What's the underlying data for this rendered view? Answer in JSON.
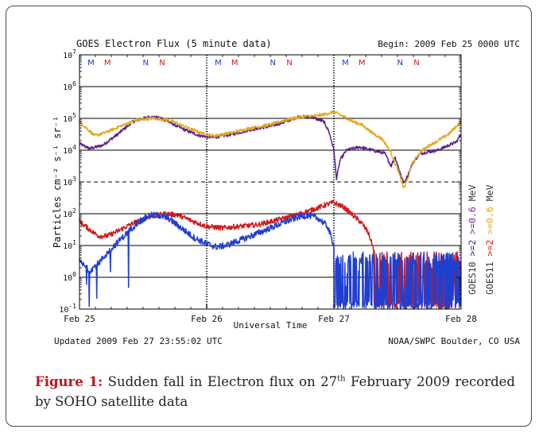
{
  "chart_data": {
    "type": "line",
    "title": "GOES Electron Flux (5 minute data)",
    "begin": "Begin: 2009 Feb 25 0000 UTC",
    "xlabel": "Universal Time",
    "ylabel": "Particles cm⁻² s⁻¹ sr⁻¹",
    "xticks": [
      "Feb 25",
      "Feb 26",
      "Feb 27",
      "Feb 28"
    ],
    "xlim_days": [
      0,
      3
    ],
    "ylim_log10": [
      -1,
      7
    ],
    "y_scale": "log",
    "yticks": [
      {
        "base": "10",
        "exp": "-1",
        "v": -1
      },
      {
        "base": "10",
        "exp": "0",
        "v": 0
      },
      {
        "base": "10",
        "exp": "1",
        "v": 1
      },
      {
        "base": "10",
        "exp": "2",
        "v": 2
      },
      {
        "base": "10",
        "exp": "3",
        "v": 3
      },
      {
        "base": "10",
        "exp": "4",
        "v": 4
      },
      {
        "base": "10",
        "exp": "5",
        "v": 5
      },
      {
        "base": "10",
        "exp": "6",
        "v": 6
      },
      {
        "base": "10",
        "exp": "7",
        "v": 7
      }
    ],
    "threshold_line_log10": 3,
    "footer_left": "Updated 2009 Feb 27 23:55:02 UTC",
    "footer_right": "NOAA/SWPC Boulder, CO USA",
    "legend": [
      {
        "lines": [
          {
            "text": "GOES10",
            "color": "#333333"
          },
          {
            "text": ">=2",
            "color": "#3a1f9e"
          },
          {
            "text": ">=0.6",
            "color": "#7e2f8e"
          },
          {
            "text": "MeV",
            "color": "#333333"
          }
        ]
      },
      {
        "lines": [
          {
            "text": "GOES11",
            "color": "#333333"
          },
          {
            "text": ">=2",
            "color": "#d11a1a"
          },
          {
            "text": ">=0.6",
            "color": "#e6a717"
          },
          {
            "text": "MeV",
            "color": "#333333"
          }
        ]
      }
    ],
    "markers": [
      {
        "t": 0.09,
        "label": "M",
        "color": "#1f3fbf"
      },
      {
        "t": 0.22,
        "label": "M",
        "color": "#c81e1e"
      },
      {
        "t": 0.52,
        "label": "N",
        "color": "#1f3fbf"
      },
      {
        "t": 0.65,
        "label": "N",
        "color": "#c81e1e"
      },
      {
        "t": 1.09,
        "label": "M",
        "color": "#1f3fbf"
      },
      {
        "t": 1.22,
        "label": "M",
        "color": "#c81e1e"
      },
      {
        "t": 1.52,
        "label": "N",
        "color": "#1f3fbf"
      },
      {
        "t": 1.65,
        "label": "N",
        "color": "#c81e1e"
      },
      {
        "t": 2.09,
        "label": "M",
        "color": "#1f3fbf"
      },
      {
        "t": 2.22,
        "label": "M",
        "color": "#c81e1e"
      },
      {
        "t": 2.52,
        "label": "N",
        "color": "#1f3fbf"
      },
      {
        "t": 2.65,
        "label": "N",
        "color": "#c81e1e"
      }
    ],
    "series": [
      {
        "id": "goes10_06",
        "color": "#5b1f8e",
        "points": [
          [
            0,
            4.2
          ],
          [
            0.08,
            4.05
          ],
          [
            0.18,
            4.15
          ],
          [
            0.3,
            4.5
          ],
          [
            0.42,
            4.9
          ],
          [
            0.55,
            5.05
          ],
          [
            0.65,
            5.0
          ],
          [
            0.72,
            4.85
          ],
          [
            0.85,
            4.6
          ],
          [
            0.95,
            4.45
          ],
          [
            1.05,
            4.4
          ],
          [
            1.2,
            4.5
          ],
          [
            1.35,
            4.65
          ],
          [
            1.5,
            4.75
          ],
          [
            1.62,
            4.9
          ],
          [
            1.72,
            5.05
          ],
          [
            1.82,
            5.05
          ],
          [
            1.92,
            4.9
          ],
          [
            1.96,
            4.6
          ],
          [
            2.0,
            4.0
          ],
          [
            2.02,
            3.1
          ],
          [
            2.05,
            3.7
          ],
          [
            2.1,
            4.0
          ],
          [
            2.2,
            4.1
          ],
          [
            2.3,
            4.0
          ],
          [
            2.4,
            3.9
          ],
          [
            2.45,
            3.5
          ],
          [
            2.48,
            3.8
          ],
          [
            2.52,
            3.3
          ],
          [
            2.55,
            2.95
          ],
          [
            2.58,
            3.2
          ],
          [
            2.62,
            3.6
          ],
          [
            2.68,
            3.9
          ],
          [
            2.75,
            3.95
          ],
          [
            2.82,
            4.0
          ],
          [
            2.9,
            4.15
          ],
          [
            2.96,
            4.25
          ],
          [
            3,
            4.5
          ]
        ],
        "noise": 0.05
      },
      {
        "id": "goes11_06",
        "color": "#e3a820",
        "points": [
          [
            0,
            4.9
          ],
          [
            0.08,
            4.6
          ],
          [
            0.12,
            4.45
          ],
          [
            0.2,
            4.55
          ],
          [
            0.32,
            4.75
          ],
          [
            0.45,
            4.95
          ],
          [
            0.58,
            5.0
          ],
          [
            0.7,
            4.95
          ],
          [
            0.82,
            4.75
          ],
          [
            0.95,
            4.55
          ],
          [
            1.05,
            4.45
          ],
          [
            1.2,
            4.55
          ],
          [
            1.35,
            4.7
          ],
          [
            1.5,
            4.8
          ],
          [
            1.62,
            4.95
          ],
          [
            1.75,
            5.05
          ],
          [
            1.9,
            5.1
          ],
          [
            2.0,
            5.2
          ],
          [
            2.08,
            5.05
          ],
          [
            2.15,
            4.9
          ],
          [
            2.22,
            4.8
          ],
          [
            2.3,
            4.55
          ],
          [
            2.38,
            4.35
          ],
          [
            2.44,
            4.0
          ],
          [
            2.5,
            3.4
          ],
          [
            2.55,
            2.8
          ],
          [
            2.58,
            3.1
          ],
          [
            2.62,
            3.6
          ],
          [
            2.68,
            3.95
          ],
          [
            2.75,
            4.15
          ],
          [
            2.82,
            4.3
          ],
          [
            2.9,
            4.5
          ],
          [
            3,
            4.9
          ]
        ],
        "noise": 0.05
      },
      {
        "id": "goes11_2",
        "color": "#d11a1a",
        "points": [
          [
            0,
            1.75
          ],
          [
            0.08,
            1.5
          ],
          [
            0.15,
            1.3
          ],
          [
            0.22,
            1.3
          ],
          [
            0.3,
            1.45
          ],
          [
            0.42,
            1.7
          ],
          [
            0.55,
            1.9
          ],
          [
            0.68,
            2.0
          ],
          [
            0.78,
            1.95
          ],
          [
            0.9,
            1.75
          ],
          [
            1.0,
            1.6
          ],
          [
            1.12,
            1.55
          ],
          [
            1.25,
            1.6
          ],
          [
            1.4,
            1.65
          ],
          [
            1.55,
            1.8
          ],
          [
            1.7,
            1.95
          ],
          [
            1.85,
            2.15
          ],
          [
            1.95,
            2.3
          ],
          [
            2.0,
            2.35
          ],
          [
            2.08,
            2.2
          ],
          [
            2.15,
            1.95
          ],
          [
            2.22,
            1.7
          ],
          [
            2.27,
            1.4
          ],
          [
            2.3,
            1.05
          ],
          [
            2.32,
            0.75
          ]
        ],
        "noise": 0.08,
        "noisy_tail": {
          "from": 2.32,
          "to": 3.0,
          "low": -1.0,
          "high": 0.8
        }
      },
      {
        "id": "goes10_2",
        "color": "#1f3fd0",
        "points": [
          [
            0,
            0.5
          ],
          [
            0.08,
            0.2
          ],
          [
            0.15,
            0.45
          ],
          [
            0.25,
            0.9
          ],
          [
            0.35,
            1.3
          ],
          [
            0.45,
            1.7
          ],
          [
            0.55,
            1.95
          ],
          [
            0.62,
            1.95
          ],
          [
            0.7,
            1.85
          ],
          [
            0.8,
            1.55
          ],
          [
            0.9,
            1.25
          ],
          [
            1.0,
            1.05
          ],
          [
            1.08,
            0.95
          ],
          [
            1.15,
            1.0
          ],
          [
            1.25,
            1.15
          ],
          [
            1.38,
            1.35
          ],
          [
            1.5,
            1.55
          ],
          [
            1.62,
            1.75
          ],
          [
            1.72,
            1.9
          ],
          [
            1.8,
            1.95
          ],
          [
            1.88,
            1.85
          ],
          [
            1.95,
            1.6
          ],
          [
            2.0,
            1.0
          ]
        ],
        "noise": 0.1,
        "spikes_early": true,
        "noisy_tail": {
          "from": 2.0,
          "to": 3.0,
          "low": -1.0,
          "high": 0.8
        }
      }
    ]
  },
  "caption": {
    "label": "Figure 1:",
    "text_a": " Sudden fall in Electron flux on 27",
    "sup": "th",
    "text_b": " February 2009 recorded by SOHO satellite data"
  }
}
